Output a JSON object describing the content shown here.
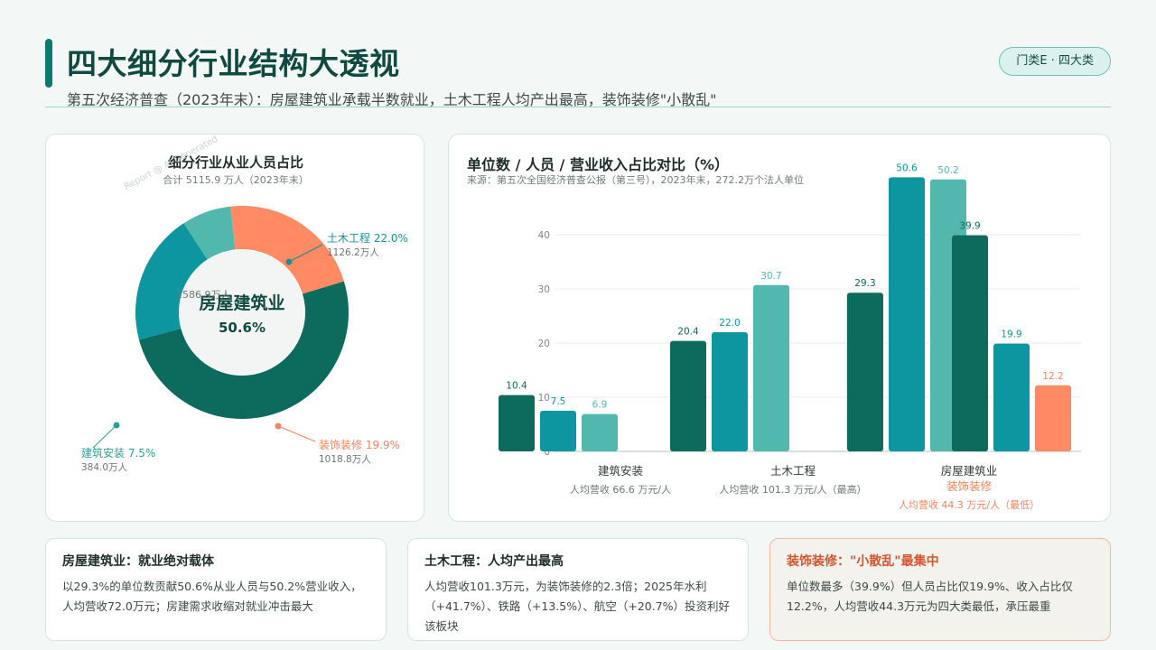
{
  "header": {
    "title": "四大细分行业结构大透视",
    "subtitle": "第五次经济普查（2023年末）：房屋建筑业承载半数就业，土木工程人均产出最高，装饰装修\"小散乱\"",
    "tag": "门类E · 四大类"
  },
  "left_panel": {
    "title": "细分行业从业人员占比",
    "subtitle": "合计 5115.9 万人（2023年末）",
    "watermark": "Report @ AI Generated",
    "center_label": "房屋建筑业",
    "center_value": "50.6%",
    "inner_label": "2586.9万人"
  },
  "right_panel": {
    "title": "单位数 / 人员 / 营业收入占比对比（%）",
    "source": "来源：第五次全国经济普查公报（第三号），2023年末，272.2万个法人单位"
  },
  "notes": [
    {
      "title": "房屋建筑业：就业绝对载体",
      "body": "以29.3%的单位数贡献50.6%从业人员与50.2%营业收入，人均营收72.0万元；房建需求收缩对就业冲击最大"
    },
    {
      "title": "土木工程：人均产出最高",
      "body": "人均营收101.3万元，为装饰装修的2.3倍；2025年水利（+41.7%）、铁路（+13.5%）、航空（+20.7%）投资利好该板块"
    },
    {
      "title": "装饰装修：\"小散乱\"最集中",
      "body": "单位数最多（39.9%）但人员占比仅19.9%、收入占比仅12.2%，人均营收44.3万元为四大类最低，承压最重"
    }
  ],
  "chart_data": [
    {
      "type": "pie",
      "title": "细分行业从业人员占比",
      "subtitle": "合计 5115.9 万人（2023年末）",
      "slices": [
        {
          "name": "房屋建筑业",
          "value": 50.6,
          "people": "2586.9万人",
          "color": "#0d6b5e",
          "label": "房屋建筑业",
          "pct_label": "50.6%",
          "sub": "2586.9万人"
        },
        {
          "name": "装饰装修",
          "value": 19.9,
          "people": "1018.8万人",
          "color": "#0d95a0",
          "label": "装饰装修 19.9%",
          "sub": "1018.8万人",
          "label_color": "#f0845c"
        },
        {
          "name": "建筑安装",
          "value": 7.5,
          "people": "384.0万人",
          "color": "#52b8ad",
          "label": "建筑安装 7.5%",
          "sub": "384.0万人",
          "label_color": "#2a9d94"
        },
        {
          "name": "土木工程",
          "value": 22.0,
          "people": "1126.2万人",
          "color": "#ff8a63",
          "label": "土木工程 22.0%",
          "sub": "1126.2万人",
          "label_color": "#1f8e92"
        }
      ]
    },
    {
      "type": "bar",
      "title": "单位数 / 人员 / 营业收入占比对比（%）",
      "ylim": [
        0,
        50
      ],
      "yticks": [
        0,
        10,
        20,
        30,
        40
      ],
      "grid": true,
      "categories": [
        {
          "name": "建筑安装",
          "note": "人均营收 66.6 万元/人"
        },
        {
          "name": "土木工程",
          "note": "人均营收 101.3 万元/人（最高）"
        },
        {
          "name": "房屋建筑业",
          "note": ""
        },
        {
          "name": "装饰装修",
          "note": "人均营收 44.3 万元/人（最低）",
          "color": "#f0845c"
        }
      ],
      "bars": [
        {
          "category": "建筑安装",
          "value": 10.4,
          "color": "#0d6b5e",
          "label": "10.4"
        },
        {
          "category": "建筑安装",
          "value": 7.5,
          "color": "#0d95a0",
          "label": "7.5"
        },
        {
          "category": "建筑安装",
          "value": 6.9,
          "color": "#52b8ad",
          "label": "6.9"
        },
        {
          "category": "土木工程",
          "value": 20.4,
          "color": "#0d6b5e",
          "label": "20.4"
        },
        {
          "category": "土木工程",
          "value": 22.0,
          "color": "#0d95a0",
          "label": "22.0"
        },
        {
          "category": "土木工程",
          "value": 30.7,
          "color": "#52b8ad",
          "label": "30.7"
        },
        {
          "category": "房屋建筑业",
          "value": 29.3,
          "color": "#0d6b5e",
          "label": "29.3"
        },
        {
          "category": "房屋建筑业",
          "value": 50.6,
          "color": "#0d95a0",
          "label": "50.6"
        },
        {
          "category": "房屋建筑业",
          "value": 50.2,
          "color": "#52b8ad",
          "label": "50.2"
        },
        {
          "category": "装饰装修",
          "value": 39.9,
          "color": "#0d6b5e",
          "label": "39.9"
        },
        {
          "category": "装饰装修",
          "value": 19.9,
          "color": "#0d95a0",
          "label": "19.9"
        },
        {
          "category": "装饰装修",
          "value": 12.2,
          "color": "#ff8a63",
          "label": "12.2",
          "label_color": "#f0845c"
        }
      ]
    }
  ]
}
